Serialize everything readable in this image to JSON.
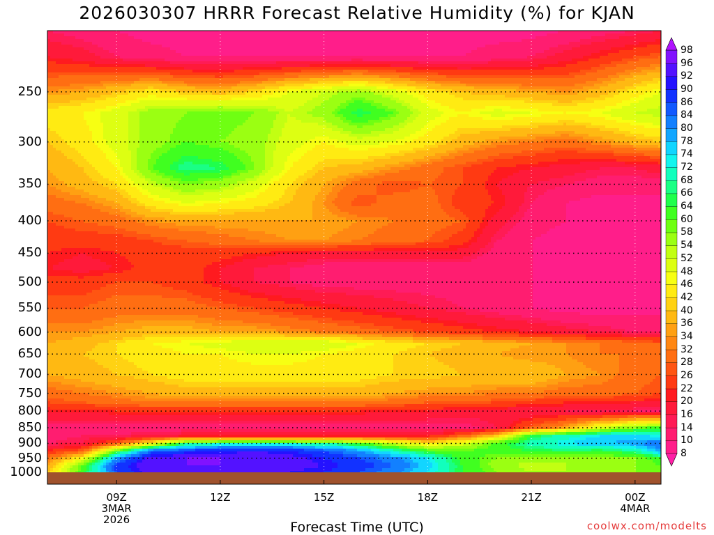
{
  "title": "2026030307 HRRR Forecast Relative Humidity (%) for KJAN",
  "xaxis_title": "Forecast Time (UTC)",
  "credit": "coolwx.com/modelts",
  "colors": {
    "background": "#ffffff",
    "ground": "#a0522d",
    "grid": "#000000",
    "credit": "#e53a3a"
  },
  "chart_data": {
    "type": "heatmap",
    "title": "2026030307 HRRR Forecast Relative Humidity (%) for KJAN",
    "xlabel": "Forecast Time (UTC)",
    "ylabel": "",
    "y_scale": "log-pressure (hPa, inverted)",
    "ylim": [
      1000,
      200
    ],
    "x_range_hours_utc": [
      7.0,
      24.75
    ],
    "x_ticks": [
      {
        "hour": 9,
        "lines": [
          "09Z",
          "3MAR",
          "2026"
        ]
      },
      {
        "hour": 12,
        "lines": [
          "12Z"
        ]
      },
      {
        "hour": 15,
        "lines": [
          "15Z"
        ]
      },
      {
        "hour": 18,
        "lines": [
          "18Z"
        ]
      },
      {
        "hour": 21,
        "lines": [
          "21Z"
        ]
      },
      {
        "hour": 24,
        "lines": [
          "00Z",
          "4MAR"
        ]
      }
    ],
    "y_ticks": [
      250,
      300,
      350,
      400,
      450,
      500,
      550,
      600,
      650,
      700,
      750,
      800,
      850,
      900,
      950,
      1000
    ],
    "grid": true,
    "x_hours": [
      7,
      8,
      9,
      10,
      11,
      12,
      13,
      14,
      15,
      16,
      17,
      18,
      19,
      20,
      21,
      22,
      23,
      24,
      24.75
    ],
    "pressure_levels": [
      200,
      220,
      250,
      270,
      300,
      330,
      350,
      375,
      400,
      430,
      450,
      475,
      500,
      550,
      600,
      625,
      650,
      700,
      750,
      775,
      800,
      850,
      875,
      900,
      925,
      950,
      975,
      1000
    ],
    "rh": [
      [
        14,
        12,
        10,
        8,
        8,
        8,
        8,
        8,
        8,
        8,
        8,
        8,
        8,
        8,
        8,
        10,
        12,
        14,
        16
      ],
      [
        20,
        18,
        14,
        12,
        10,
        10,
        10,
        10,
        10,
        10,
        10,
        10,
        10,
        12,
        14,
        18,
        22,
        26,
        28
      ],
      [
        34,
        36,
        40,
        44,
        40,
        38,
        42,
        48,
        52,
        56,
        50,
        44,
        40,
        38,
        36,
        34,
        38,
        44,
        48
      ],
      [
        44,
        46,
        50,
        56,
        58,
        60,
        58,
        52,
        56,
        66,
        60,
        50,
        46,
        50,
        48,
        46,
        48,
        52,
        54
      ],
      [
        40,
        44,
        50,
        56,
        60,
        58,
        56,
        50,
        46,
        50,
        48,
        44,
        38,
        34,
        32,
        30,
        34,
        38,
        40
      ],
      [
        36,
        40,
        46,
        60,
        68,
        66,
        58,
        46,
        40,
        38,
        34,
        30,
        26,
        22,
        20,
        18,
        16,
        16,
        18
      ],
      [
        34,
        38,
        42,
        52,
        58,
        56,
        50,
        42,
        36,
        30,
        26,
        28,
        26,
        20,
        16,
        14,
        12,
        12,
        12
      ],
      [
        30,
        32,
        36,
        44,
        48,
        46,
        44,
        40,
        34,
        26,
        30,
        30,
        24,
        22,
        14,
        10,
        8,
        8,
        8
      ],
      [
        26,
        28,
        30,
        34,
        36,
        36,
        36,
        36,
        36,
        34,
        32,
        30,
        28,
        18,
        12,
        10,
        8,
        8,
        8
      ],
      [
        24,
        24,
        24,
        26,
        28,
        30,
        32,
        34,
        34,
        32,
        30,
        28,
        24,
        14,
        10,
        8,
        8,
        8,
        8
      ],
      [
        22,
        20,
        22,
        24,
        24,
        24,
        22,
        20,
        18,
        18,
        18,
        18,
        18,
        12,
        10,
        8,
        8,
        8,
        8
      ],
      [
        20,
        18,
        20,
        24,
        24,
        20,
        16,
        14,
        12,
        12,
        12,
        12,
        12,
        10,
        10,
        8,
        8,
        8,
        8
      ],
      [
        24,
        24,
        26,
        26,
        24,
        20,
        16,
        14,
        12,
        12,
        12,
        12,
        12,
        10,
        10,
        8,
        8,
        8,
        8
      ],
      [
        28,
        28,
        30,
        30,
        30,
        28,
        26,
        24,
        22,
        20,
        18,
        16,
        14,
        12,
        10,
        8,
        8,
        8,
        8
      ],
      [
        34,
        34,
        36,
        38,
        38,
        36,
        36,
        34,
        32,
        30,
        28,
        26,
        24,
        22,
        20,
        18,
        16,
        14,
        14
      ],
      [
        36,
        38,
        42,
        46,
        48,
        50,
        52,
        52,
        52,
        48,
        44,
        42,
        40,
        38,
        36,
        34,
        32,
        30,
        28
      ],
      [
        38,
        40,
        42,
        44,
        46,
        46,
        48,
        48,
        46,
        44,
        42,
        40,
        38,
        36,
        34,
        34,
        32,
        32,
        30
      ],
      [
        36,
        38,
        40,
        42,
        44,
        44,
        44,
        44,
        44,
        44,
        42,
        42,
        40,
        40,
        40,
        36,
        34,
        30,
        28
      ],
      [
        30,
        32,
        34,
        36,
        38,
        38,
        38,
        38,
        38,
        38,
        36,
        34,
        34,
        32,
        32,
        30,
        30,
        28,
        26
      ],
      [
        26,
        28,
        30,
        32,
        32,
        32,
        32,
        32,
        32,
        32,
        30,
        28,
        28,
        26,
        24,
        22,
        22,
        20,
        20
      ],
      [
        20,
        20,
        22,
        22,
        22,
        22,
        22,
        22,
        22,
        22,
        20,
        20,
        18,
        18,
        16,
        16,
        14,
        14,
        12
      ],
      [
        12,
        12,
        12,
        12,
        12,
        12,
        12,
        12,
        12,
        12,
        12,
        12,
        12,
        16,
        28,
        36,
        50,
        58,
        62
      ],
      [
        12,
        14,
        14,
        16,
        18,
        18,
        18,
        18,
        18,
        18,
        20,
        20,
        28,
        40,
        64,
        70,
        74,
        76,
        72
      ],
      [
        14,
        16,
        28,
        46,
        66,
        70,
        70,
        70,
        68,
        62,
        52,
        44,
        50,
        62,
        70,
        74,
        78,
        80,
        84
      ],
      [
        22,
        28,
        60,
        84,
        88,
        90,
        92,
        90,
        86,
        80,
        70,
        62,
        60,
        62,
        64,
        66,
        64,
        68,
        80
      ],
      [
        30,
        46,
        80,
        94,
        96,
        96,
        94,
        94,
        90,
        86,
        82,
        74,
        62,
        58,
        56,
        54,
        56,
        58,
        62
      ],
      [
        36,
        60,
        88,
        96,
        96,
        96,
        94,
        94,
        92,
        88,
        84,
        76,
        64,
        56,
        52,
        54,
        56,
        58,
        60
      ],
      [
        40,
        62,
        86,
        94,
        94,
        94,
        92,
        92,
        90,
        86,
        82,
        74,
        64,
        58,
        54,
        54,
        56,
        58,
        60
      ]
    ],
    "colorbar": {
      "label_levels": [
        8,
        10,
        14,
        16,
        20,
        22,
        26,
        28,
        32,
        34,
        36,
        40,
        42,
        46,
        48,
        52,
        54,
        58,
        60,
        64,
        66,
        68,
        72,
        74,
        78,
        80,
        84,
        86,
        90,
        92,
        96,
        98
      ],
      "colors": [
        "#ff1fa6",
        "#ff1e8a",
        "#ff1d70",
        "#ff1b55",
        "#ff1a3a",
        "#ff1a1f",
        "#ff3a12",
        "#ff5512",
        "#ff6e12",
        "#ff8712",
        "#ffa012",
        "#ffb912",
        "#ffd212",
        "#ffeb12",
        "#f7ff12",
        "#ddff12",
        "#c2ff12",
        "#9bff12",
        "#6fff12",
        "#40ff20",
        "#1fff4c",
        "#1aff85",
        "#12ffbd",
        "#12f5ee",
        "#12d5ff",
        "#12a6ff",
        "#1280ff",
        "#1259ff",
        "#1232ff",
        "#2412ff",
        "#5312ff",
        "#8112ff",
        "#b012ff"
      ]
    }
  }
}
